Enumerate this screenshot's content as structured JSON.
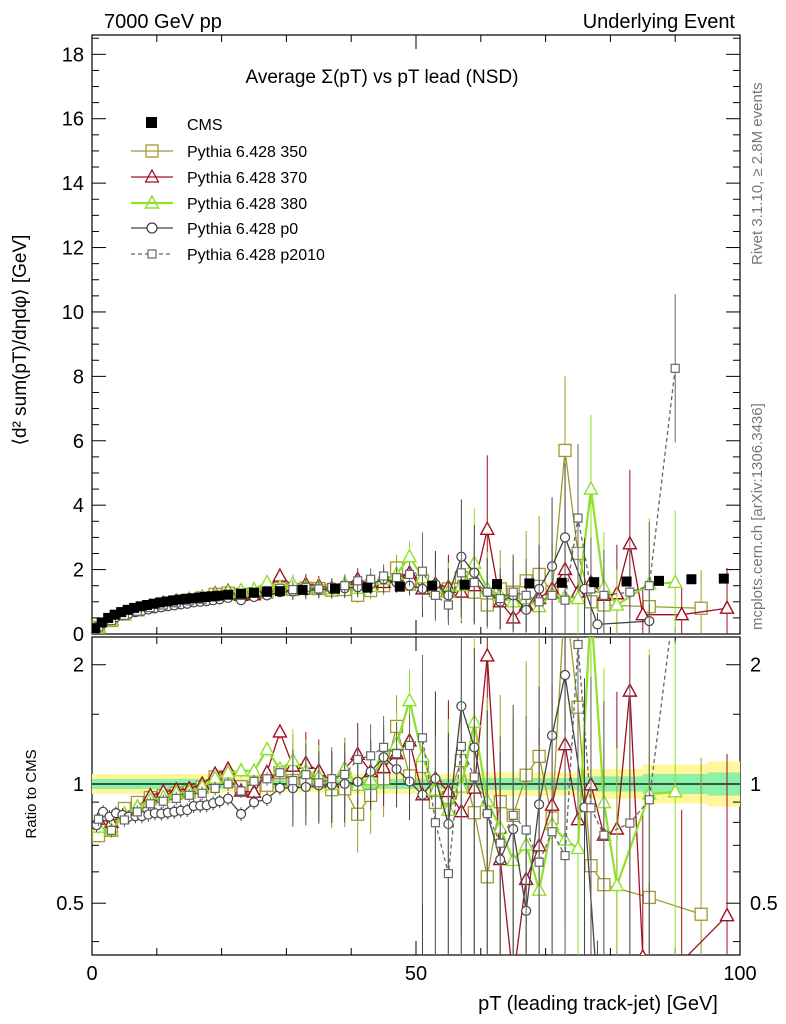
{
  "header": {
    "left": "7000 GeV pp",
    "right": "Underlying Event"
  },
  "side_labels": {
    "rivet": "Rivet 3.1.10, ≥ 2.8M events",
    "mcplots": "mcplots.cern.ch [arXiv:1306.3436]"
  },
  "legend": [
    "CMS",
    "Pythia 6.428 350",
    "Pythia 6.428 370",
    "Pythia 6.428 380",
    "Pythia 6.428 p0",
    "Pythia 6.428 p2010"
  ],
  "colors": {
    "cms": "#000000",
    "p350": "#a09a2e",
    "p370": "#a01020",
    "p380": "#8ee02a",
    "p0": "#444444",
    "p2010": "#666666",
    "band_inner": "#8df0a8",
    "band_outer": "#fff79a"
  },
  "chart_data": {
    "type": "scatter",
    "title": "Average Σ(pT) vs pT lead (NSD)",
    "xlabel": "pT (leading track-jet) [GeV]",
    "ylabel": "⟨d² sum(pT)/dηdφ⟩ [GeV]",
    "ratio_ylabel": "Ratio to CMS",
    "xlim": [
      0,
      100
    ],
    "ylim": [
      0,
      18.6
    ],
    "ratio_ylim": [
      0.37,
      2.35
    ],
    "ratio_log": true,
    "xticks": [
      "0",
      "50",
      "100"
    ],
    "yticks": [
      "0",
      "2",
      "4",
      "6",
      "8",
      "10",
      "12",
      "14",
      "16",
      "18"
    ],
    "ratio_yticks": [
      "0.5",
      "1",
      "2"
    ],
    "series": [
      {
        "name": "CMS",
        "style": "cms",
        "x": [
          0.5,
          1.5,
          2.5,
          3.5,
          4.5,
          5.5,
          6.5,
          7.5,
          8.5,
          9.5,
          10.5,
          11.5,
          12.5,
          13.5,
          14.5,
          15.5,
          16.5,
          17.5,
          18.5,
          19.5,
          21,
          23,
          25,
          27,
          29,
          32.5,
          37.5,
          42.5,
          47.5,
          52.5,
          57.5,
          62.5,
          67.5,
          72.5,
          77.5,
          82.5,
          87.5,
          92.5,
          97.5
        ],
        "y": [
          0.18,
          0.36,
          0.5,
          0.6,
          0.68,
          0.75,
          0.81,
          0.86,
          0.9,
          0.94,
          0.98,
          1.01,
          1.04,
          1.07,
          1.09,
          1.11,
          1.13,
          1.15,
          1.17,
          1.19,
          1.22,
          1.25,
          1.28,
          1.31,
          1.33,
          1.37,
          1.41,
          1.44,
          1.47,
          1.5,
          1.53,
          1.55,
          1.57,
          1.59,
          1.61,
          1.63,
          1.65,
          1.7,
          1.72
        ]
      },
      {
        "name": "Pythia 6.428 350",
        "style": "square",
        "color": "p350",
        "x": [
          1,
          3,
          5,
          7,
          9,
          11,
          13,
          15,
          17,
          19,
          21,
          23,
          25,
          27,
          29,
          31,
          33,
          35,
          37,
          39,
          41,
          43,
          45,
          47,
          49,
          51,
          53,
          55,
          57,
          59,
          61,
          63,
          65,
          67,
          69,
          71,
          73,
          75,
          77,
          79,
          86,
          94
        ],
        "y": [
          0.2,
          0.42,
          0.62,
          0.75,
          0.85,
          0.93,
          1.0,
          1.05,
          1.12,
          1.23,
          1.27,
          1.23,
          1.25,
          1.3,
          1.42,
          1.38,
          1.42,
          1.41,
          1.36,
          1.38,
          1.2,
          1.35,
          1.5,
          2.05,
          1.55,
          1.65,
          1.35,
          1.4,
          1.75,
          1.3,
          0.9,
          1.4,
          1.3,
          1.65,
          1.85,
          1.3,
          5.7,
          2.5,
          1.0,
          0.9,
          0.85,
          0.8
        ]
      },
      {
        "name": "Pythia 6.428 370",
        "style": "triangle",
        "color": "p370",
        "x": [
          1,
          3,
          5,
          7,
          9,
          11,
          13,
          15,
          17,
          19,
          21,
          23,
          25,
          27,
          29,
          31,
          33,
          35,
          37,
          39,
          41,
          43,
          45,
          47,
          49,
          51,
          53,
          55,
          57,
          59,
          61,
          63,
          65,
          67,
          69,
          71,
          73,
          75,
          77,
          79,
          81,
          83,
          85,
          91,
          98
        ],
        "y": [
          0.22,
          0.44,
          0.6,
          0.73,
          0.86,
          0.95,
          1.02,
          1.07,
          1.14,
          1.25,
          1.33,
          1.2,
          1.22,
          1.4,
          1.8,
          1.5,
          1.55,
          1.5,
          1.42,
          1.55,
          1.7,
          1.55,
          1.6,
          1.75,
          1.9,
          1.4,
          1.55,
          1.45,
          1.3,
          1.5,
          3.25,
          1.0,
          0.5,
          0.9,
          1.1,
          1.4,
          2.0,
          1.3,
          1.6,
          1.2,
          1.25,
          2.8,
          0.6,
          0.6,
          0.8
        ]
      },
      {
        "name": "Pythia 6.428 380",
        "style": "triangle",
        "color": "p380",
        "x": [
          1,
          3,
          5,
          7,
          9,
          11,
          13,
          15,
          17,
          19,
          21,
          23,
          25,
          27,
          29,
          31,
          33,
          35,
          37,
          39,
          41,
          43,
          45,
          47,
          49,
          51,
          53,
          55,
          57,
          59,
          61,
          63,
          65,
          67,
          69,
          71,
          73,
          75,
          77,
          79,
          81,
          86,
          90
        ],
        "y": [
          0.21,
          0.42,
          0.6,
          0.73,
          0.84,
          0.92,
          1.0,
          1.05,
          1.12,
          1.22,
          1.3,
          1.35,
          1.38,
          1.6,
          1.45,
          1.55,
          1.48,
          1.45,
          1.4,
          1.55,
          1.42,
          1.48,
          1.7,
          1.85,
          2.4,
          1.75,
          1.45,
          1.3,
          1.5,
          2.2,
          1.4,
          1.2,
          1.0,
          1.1,
          0.85,
          1.25,
          1.15,
          1.1,
          4.5,
          1.45,
          0.9,
          1.55,
          1.6
        ]
      },
      {
        "name": "Pythia 6.428 p0",
        "style": "circle",
        "color": "p0",
        "x": [
          0.7,
          1.7,
          2.7,
          3.7,
          4.7,
          5.7,
          6.7,
          7.7,
          8.7,
          9.7,
          10.7,
          11.7,
          12.7,
          13.7,
          14.7,
          15.7,
          16.7,
          17.7,
          18.7,
          19.7,
          21,
          23,
          25,
          27,
          29,
          31,
          33,
          35,
          37,
          39,
          41,
          43,
          45,
          47,
          49,
          51,
          53,
          55,
          57,
          59,
          61,
          63,
          65,
          67,
          69,
          71,
          73,
          76,
          78,
          86
        ],
        "y": [
          0.17,
          0.33,
          0.43,
          0.52,
          0.58,
          0.63,
          0.68,
          0.72,
          0.76,
          0.8,
          0.83,
          0.86,
          0.89,
          0.92,
          0.94,
          0.98,
          1.0,
          1.02,
          1.05,
          1.08,
          1.12,
          1.05,
          1.15,
          1.2,
          1.3,
          1.32,
          1.35,
          1.38,
          1.4,
          1.42,
          1.45,
          1.55,
          1.7,
          1.6,
          1.5,
          1.4,
          1.55,
          1.2,
          2.4,
          1.9,
          1.3,
          1.0,
          1.2,
          0.75,
          1.4,
          2.1,
          3.0,
          1.4,
          0.3,
          0.4
        ]
      },
      {
        "name": "Pythia 6.428 p2010",
        "style": "square-dashed",
        "color": "p2010",
        "x": [
          1,
          3,
          5,
          7,
          9,
          11,
          13,
          15,
          17,
          19,
          21,
          23,
          25,
          27,
          29,
          31,
          33,
          35,
          37,
          39,
          41,
          43,
          45,
          47,
          49,
          51,
          53,
          55,
          57,
          59,
          61,
          63,
          65,
          67,
          69,
          71,
          73,
          75,
          77,
          79,
          83,
          86,
          90
        ],
        "y": [
          0.22,
          0.42,
          0.58,
          0.71,
          0.82,
          0.9,
          0.97,
          1.03,
          1.08,
          1.15,
          1.22,
          1.2,
          1.3,
          1.35,
          1.42,
          1.38,
          1.45,
          1.4,
          1.45,
          1.5,
          1.65,
          1.7,
          1.8,
          1.75,
          1.85,
          1.95,
          1.2,
          0.9,
          1.9,
          1.6,
          1.3,
          1.1,
          1.3,
          1.2,
          1.0,
          1.2,
          1.05,
          3.6,
          1.4,
          1.2,
          1.3,
          1.5,
          8.25
        ]
      }
    ]
  }
}
